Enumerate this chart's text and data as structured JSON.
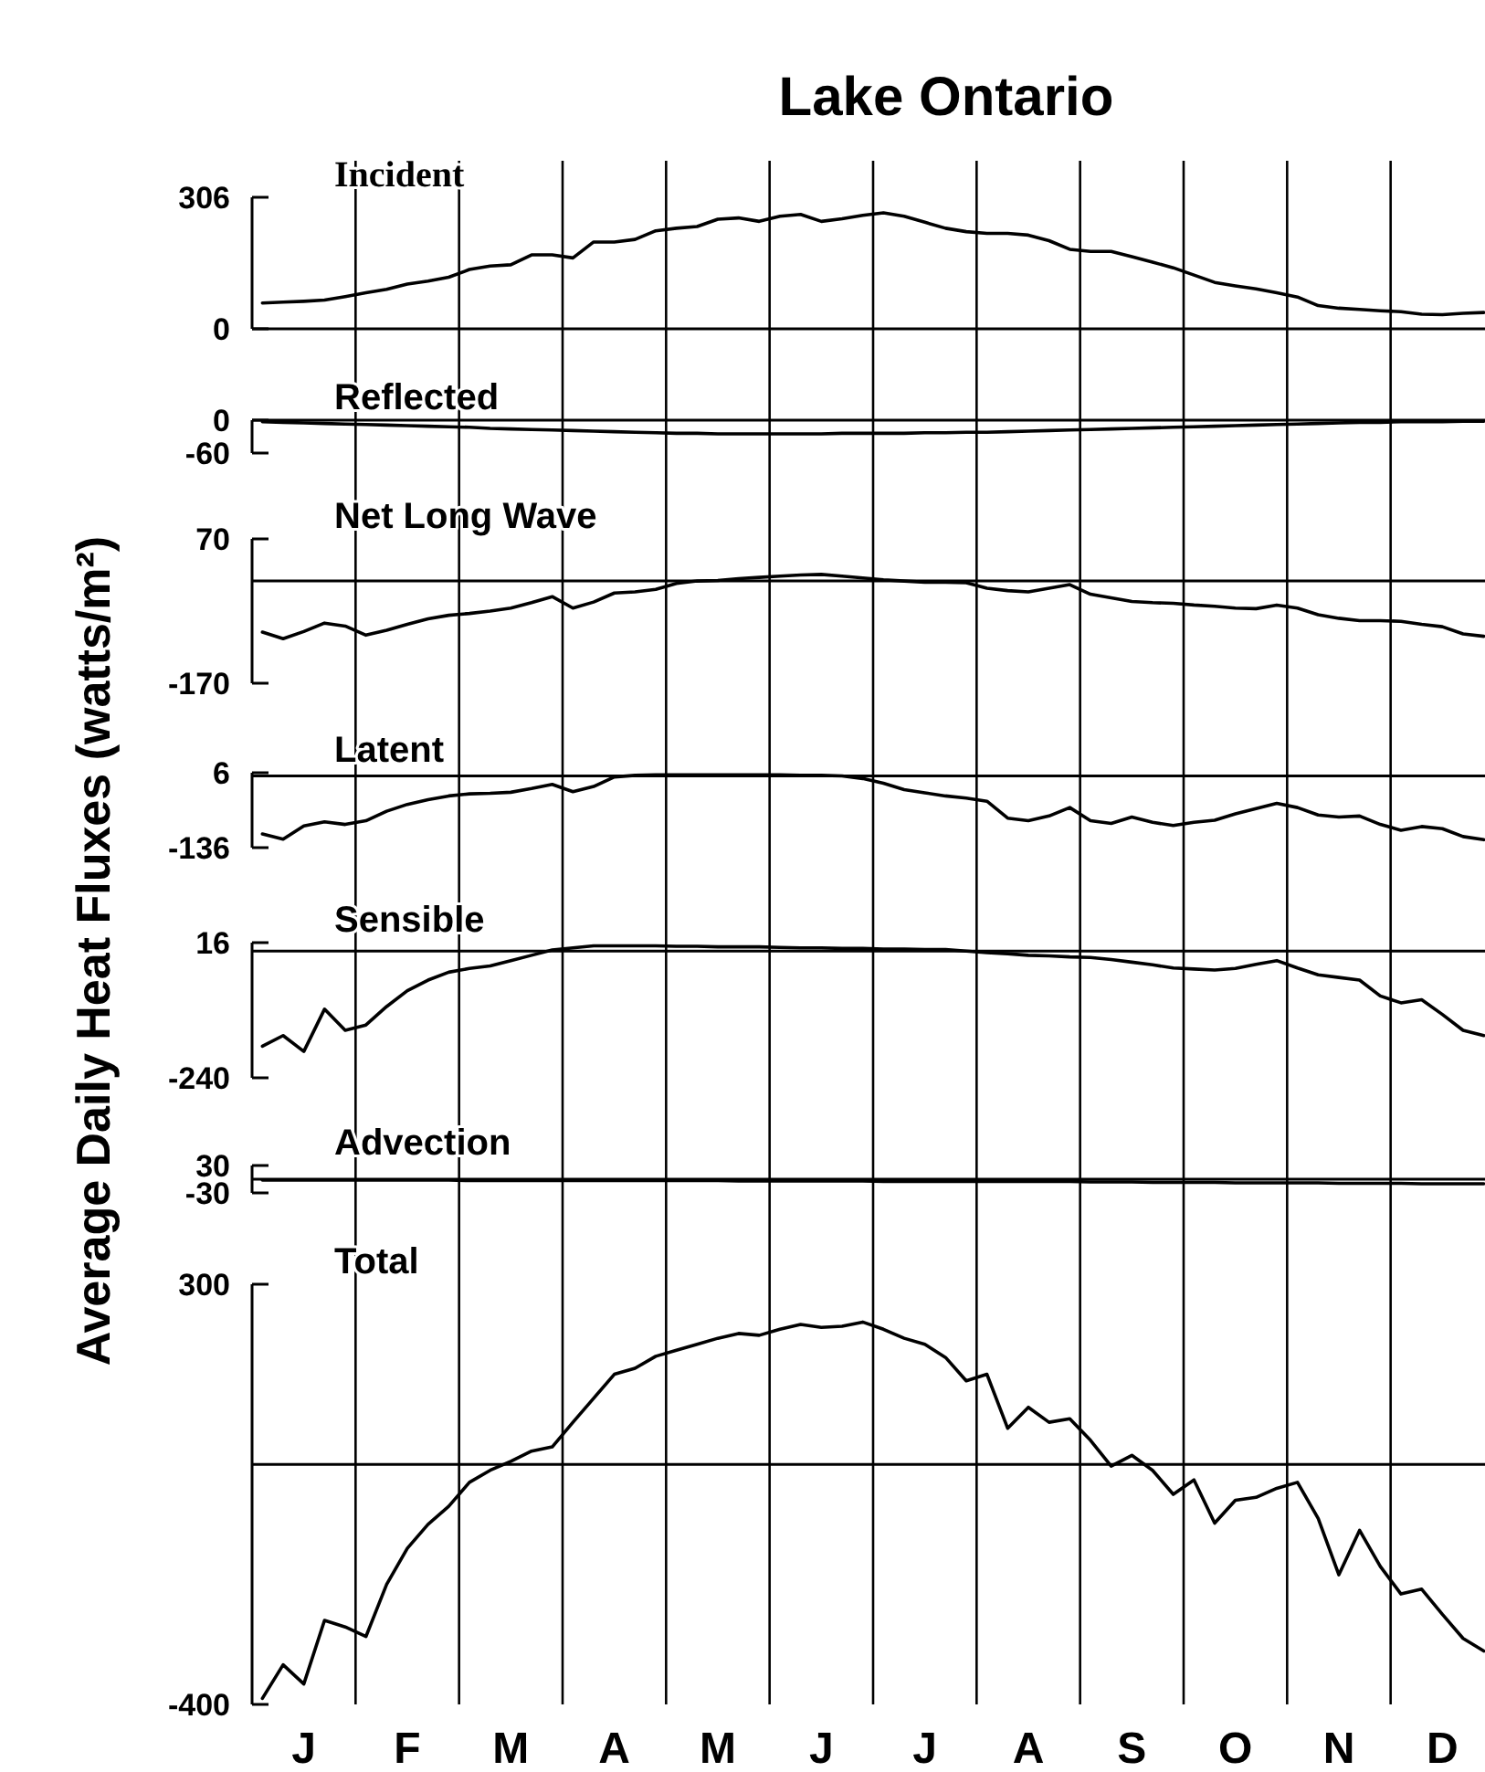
{
  "chart_data": [
    {
      "type": "line",
      "title": "Lake Ontario",
      "subtitle": "Incident",
      "ylabel": "Average Daily Heat Fluxes (watts/m²)",
      "tick_labels": "y",
      "grid": "x",
      "categories": [
        null,
        null,
        null,
        null,
        null,
        null,
        null,
        null,
        null,
        null,
        null,
        null,
        null,
        null,
        null,
        null,
        null,
        null,
        null,
        null,
        null,
        null,
        null,
        null,
        null,
        null,
        null,
        null,
        null,
        null,
        null,
        null,
        null,
        null,
        null,
        null,
        null,
        null,
        null,
        null,
        null,
        null,
        null,
        null,
        null,
        null,
        null,
        null,
        null,
        null,
        null,
        null,
        null,
        null,
        null,
        null,
        null,
        null,
        null,
        null
      ],
      "series": [
        {
          "color": "#000000",
          "values": [
            60,
            62,
            64,
            67,
            75,
            84,
            92,
            104,
            111,
            120,
            138,
            146,
            149,
            172,
            172,
            165,
            202,
            202,
            208,
            228,
            234,
            238,
            255,
            258,
            250,
            262,
            266,
            250,
            256,
            264,
            270,
            262,
            248,
            234,
            226,
            222,
            222,
            218,
            205,
            185,
            180,
            180,
            168,
            155,
            142,
            125,
            108,
            100,
            93,
            84,
            74,
            54,
            48,
            45,
            42,
            40,
            34,
            33,
            36,
            38
          ]
        }
      ],
      "ylim": [
        0,
        306
      ],
      "yticks": [
        0,
        306
      ]
    },
    {
      "type": "line",
      "title": "Reflected",
      "tick_labels": "y",
      "grid": "x",
      "categories": [
        null,
        null,
        null,
        null,
        null,
        null,
        null,
        null,
        null,
        null,
        null,
        null,
        null,
        null,
        null,
        null,
        null,
        null,
        null,
        null,
        null,
        null,
        null,
        null,
        null,
        null,
        null,
        null,
        null,
        null,
        null,
        null,
        null,
        null,
        null,
        null,
        null,
        null,
        null,
        null,
        null,
        null,
        null,
        null,
        null,
        null,
        null,
        null,
        null,
        null,
        null,
        null,
        null,
        null,
        null,
        null,
        null,
        null,
        null,
        null
      ],
      "series": [
        {
          "color": "#000000",
          "values": [
            -3,
            -4,
            -5,
            -6,
            -7,
            -8,
            -9,
            -10,
            -11,
            -12,
            -13,
            -15,
            -16,
            -17,
            -18,
            -19,
            -20,
            -21,
            -22,
            -23,
            -24,
            -24,
            -25,
            -25,
            -25,
            -25,
            -25,
            -25,
            -24,
            -24,
            -24,
            -24,
            -23,
            -23,
            -22,
            -22,
            -21,
            -20,
            -19,
            -18,
            -17,
            -16,
            -15,
            -14,
            -13,
            -12,
            -11,
            -10,
            -9,
            -8,
            -7,
            -6,
            -5,
            -4,
            -4,
            -3,
            -3,
            -3,
            -2,
            -2
          ]
        }
      ],
      "ylim": [
        -60,
        0
      ],
      "yticks": [
        -60,
        0
      ],
      "ref_lines": [
        {
          "axis": "y",
          "value": 0
        }
      ]
    },
    {
      "type": "line",
      "title": "Net Long Wave",
      "tick_labels": "y",
      "grid": "x",
      "categories": [
        null,
        null,
        null,
        null,
        null,
        null,
        null,
        null,
        null,
        null,
        null,
        null,
        null,
        null,
        null,
        null,
        null,
        null,
        null,
        null,
        null,
        null,
        null,
        null,
        null,
        null,
        null,
        null,
        null,
        null,
        null,
        null,
        null,
        null,
        null,
        null,
        null,
        null,
        null,
        null,
        null,
        null,
        null,
        null,
        null,
        null,
        null,
        null,
        null,
        null,
        null,
        null,
        null,
        null,
        null,
        null,
        null,
        null,
        null,
        null
      ],
      "series": [
        {
          "color": "#000000",
          "values": [
            -85,
            -96,
            -84,
            -70,
            -75,
            -90,
            -82,
            -72,
            -63,
            -57,
            -54,
            -50,
            -45,
            -36,
            -26,
            -45,
            -35,
            -20,
            -18,
            -14,
            -4,
            0,
            1,
            4,
            6,
            8,
            10,
            11,
            8,
            5,
            2,
            0,
            -2,
            -2,
            -3,
            -12,
            -16,
            -18,
            -12,
            -6,
            -22,
            -28,
            -34,
            -36,
            -37,
            -40,
            -42,
            -45,
            -46,
            -40,
            -45,
            -56,
            -62,
            -66,
            -66,
            -67,
            -72,
            -76,
            -88,
            -92
          ]
        }
      ],
      "ylim": [
        -170,
        70
      ],
      "yticks": [
        -170,
        70
      ],
      "ref_lines": [
        {
          "axis": "y",
          "value": 0
        }
      ]
    },
    {
      "type": "line",
      "title": "Latent",
      "tick_labels": "y",
      "grid": "x",
      "categories": [
        null,
        null,
        null,
        null,
        null,
        null,
        null,
        null,
        null,
        null,
        null,
        null,
        null,
        null,
        null,
        null,
        null,
        null,
        null,
        null,
        null,
        null,
        null,
        null,
        null,
        null,
        null,
        null,
        null,
        null,
        null,
        null,
        null,
        null,
        null,
        null,
        null,
        null,
        null,
        null,
        null,
        null,
        null,
        null,
        null,
        null,
        null,
        null,
        null,
        null,
        null,
        null,
        null,
        null,
        null,
        null,
        null,
        null,
        null,
        null
      ],
      "series": [
        {
          "color": "#000000",
          "values": [
            -110,
            -120,
            -95,
            -87,
            -92,
            -85,
            -67,
            -54,
            -45,
            -38,
            -34,
            -33,
            -31,
            -24,
            -16,
            -30,
            -20,
            -2,
            1,
            2,
            2,
            2,
            2,
            2,
            2,
            2,
            1,
            1,
            0,
            -5,
            -14,
            -26,
            -32,
            -38,
            -42,
            -48,
            -80,
            -85,
            -76,
            -60,
            -85,
            -90,
            -78,
            -88,
            -94,
            -88,
            -84,
            -72,
            -62,
            -52,
            -60,
            -74,
            -78,
            -76,
            -92,
            -103,
            -96,
            -100,
            -115,
            -121
          ]
        }
      ],
      "ylim": [
        -136,
        6
      ],
      "yticks": [
        -136,
        6
      ],
      "ref_lines": [
        {
          "axis": "y",
          "value": 0
        }
      ]
    },
    {
      "type": "line",
      "title": "Sensible",
      "tick_labels": "y",
      "grid": "x",
      "categories": [
        null,
        null,
        null,
        null,
        null,
        null,
        null,
        null,
        null,
        null,
        null,
        null,
        null,
        null,
        null,
        null,
        null,
        null,
        null,
        null,
        null,
        null,
        null,
        null,
        null,
        null,
        null,
        null,
        null,
        null,
        null,
        null,
        null,
        null,
        null,
        null,
        null,
        null,
        null,
        null,
        null,
        null,
        null,
        null,
        null,
        null,
        null,
        null,
        null,
        null,
        null,
        null,
        null,
        null,
        null,
        null,
        null,
        null,
        null,
        null
      ],
      "series": [
        {
          "color": "#000000",
          "values": [
            -180,
            -160,
            -190,
            -110,
            -150,
            -140,
            -105,
            -75,
            -55,
            -40,
            -33,
            -28,
            -18,
            -8,
            2,
            6,
            10,
            10,
            10,
            10,
            9,
            9,
            8,
            8,
            8,
            7,
            6,
            6,
            5,
            5,
            4,
            4,
            3,
            3,
            0,
            -3,
            -5,
            -8,
            -9,
            -11,
            -12,
            -16,
            -21,
            -26,
            -32,
            -34,
            -36,
            -33,
            -25,
            -18,
            -32,
            -45,
            -50,
            -55,
            -85,
            -98,
            -92,
            -120,
            -150,
            -160
          ]
        }
      ],
      "ylim": [
        -240,
        16
      ],
      "yticks": [
        -240,
        16
      ],
      "ref_lines": [
        {
          "axis": "y",
          "value": 0
        }
      ]
    },
    {
      "type": "line",
      "title": "Advection",
      "tick_labels": "y",
      "grid": "x",
      "categories": [
        null,
        null,
        null,
        null,
        null,
        null,
        null,
        null,
        null,
        null,
        null,
        null,
        null,
        null,
        null,
        null,
        null,
        null,
        null,
        null,
        null,
        null,
        null,
        null,
        null,
        null,
        null,
        null,
        null,
        null,
        null,
        null,
        null,
        null,
        null,
        null,
        null,
        null,
        null,
        null,
        null,
        null,
        null,
        null,
        null,
        null,
        null,
        null,
        null,
        null,
        null,
        null,
        null,
        null,
        null,
        null,
        null,
        null,
        null,
        null
      ],
      "series": [
        {
          "color": "#000000",
          "values": [
            -2,
            -2,
            -2,
            -2,
            -2,
            -2,
            -2,
            -2,
            -2,
            -2,
            -3,
            -3,
            -3,
            -3,
            -3,
            -3,
            -3,
            -3,
            -3,
            -3,
            -3,
            -3,
            -3,
            -4,
            -4,
            -4,
            -4,
            -4,
            -4,
            -4,
            -5,
            -5,
            -5,
            -5,
            -5,
            -5,
            -5,
            -5,
            -5,
            -5,
            -6,
            -6,
            -6,
            -7,
            -7,
            -7,
            -7,
            -8,
            -8,
            -8,
            -8,
            -8,
            -9,
            -9,
            -9,
            -9,
            -10,
            -10,
            -10,
            -10
          ]
        }
      ],
      "ylim": [
        -30,
        30
      ],
      "yticks": [
        -30,
        30
      ],
      "ref_lines": [
        {
          "axis": "y",
          "value": 0
        }
      ]
    },
    {
      "type": "line",
      "title": "Total",
      "grid": "x",
      "categories": [
        null,
        null,
        "J",
        null,
        null,
        null,
        null,
        "F",
        null,
        null,
        null,
        null,
        "M",
        null,
        null,
        null,
        null,
        "A",
        null,
        null,
        null,
        null,
        "M",
        null,
        null,
        null,
        null,
        "J",
        null,
        null,
        null,
        null,
        "J",
        null,
        null,
        null,
        null,
        "A",
        null,
        null,
        null,
        null,
        "S",
        null,
        null,
        null,
        null,
        "O",
        null,
        null,
        null,
        null,
        "N",
        null,
        null,
        null,
        null,
        "D",
        null,
        null
      ],
      "series": [
        {
          "color": "#000000",
          "values": [
            -390,
            -334,
            -366,
            -260,
            -271,
            -287,
            -200,
            -140,
            -100,
            -70,
            -30,
            -10,
            5,
            22,
            29,
            70,
            110,
            150,
            160,
            180,
            190,
            200,
            210,
            218,
            215,
            225,
            233,
            228,
            230,
            237,
            225,
            210,
            200,
            178,
            139,
            150,
            60,
            95,
            70,
            76,
            40,
            -3,
            15,
            -10,
            -50,
            -26,
            -98,
            -60,
            -55,
            -40,
            -30,
            -90,
            -184,
            -110,
            -170,
            -216,
            -208,
            -250,
            -290,
            -311
          ]
        }
      ],
      "ylim": [
        -400,
        300
      ],
      "yticks": [
        -400,
        300
      ],
      "ref_lines": [
        {
          "axis": "y",
          "value": 0
        }
      ]
    }
  ]
}
